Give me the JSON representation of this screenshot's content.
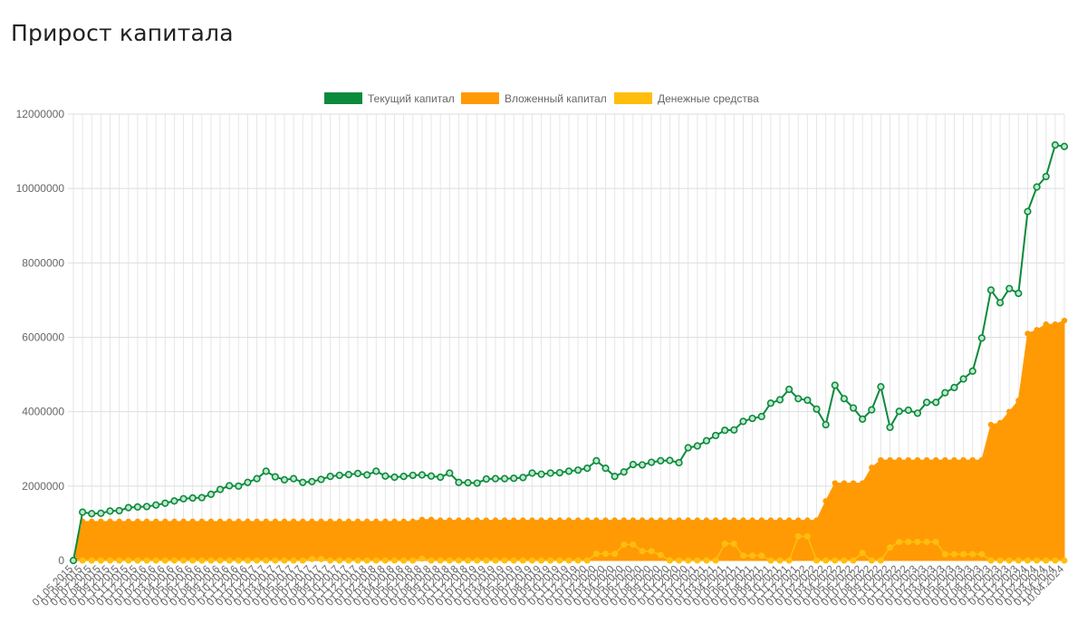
{
  "page": {
    "title": "Прирост капитала"
  },
  "chart_data": {
    "type": "area",
    "title": "",
    "xlabel": "",
    "ylabel": "",
    "ylim": [
      0,
      12000000
    ],
    "yticks": [
      0,
      2000000,
      4000000,
      6000000,
      8000000,
      10000000,
      12000000
    ],
    "grid": true,
    "legend_position": "top",
    "x": [
      "01.05.2015",
      "01.06.2015",
      "01.07.2015",
      "01.08.2015",
      "01.09.2015",
      "01.10.2015",
      "01.11.2015",
      "01.12.2015",
      "01.01.2016",
      "01.02.2016",
      "01.03.2016",
      "01.04.2016",
      "01.05.2016",
      "01.06.2016",
      "01.07.2016",
      "01.08.2016",
      "01.09.2016",
      "01.10.2016",
      "01.11.2016",
      "01.12.2016",
      "01.01.2017",
      "01.02.2017",
      "01.03.2017",
      "01.04.2017",
      "01.05.2017",
      "01.06.2017",
      "01.07.2017",
      "01.08.2017",
      "01.09.2017",
      "01.10.2017",
      "01.11.2017",
      "01.12.2017",
      "01.01.2018",
      "01.02.2018",
      "01.03.2018",
      "01.04.2018",
      "01.05.2018",
      "01.06.2018",
      "01.07.2018",
      "01.08.2018",
      "01.09.2018",
      "01.10.2018",
      "01.11.2018",
      "01.12.2018",
      "01.01.2019",
      "01.02.2019",
      "01.03.2019",
      "01.04.2019",
      "01.05.2019",
      "01.06.2019",
      "01.07.2019",
      "01.08.2019",
      "01.09.2019",
      "01.10.2019",
      "01.11.2019",
      "01.12.2019",
      "01.01.2020",
      "01.02.2020",
      "01.03.2020",
      "01.04.2020",
      "01.05.2020",
      "01.06.2020",
      "01.07.2020",
      "01.08.2020",
      "01.09.2020",
      "01.10.2020",
      "01.11.2020",
      "01.12.2020",
      "01.01.2021",
      "01.02.2021",
      "01.03.2021",
      "01.04.2021",
      "01.05.2021",
      "01.06.2021",
      "01.07.2021",
      "01.08.2021",
      "01.09.2021",
      "01.10.2021",
      "01.11.2021",
      "01.12.2021",
      "01.01.2022",
      "01.02.2022",
      "01.03.2022",
      "01.04.2022",
      "01.05.2022",
      "01.06.2022",
      "01.07.2022",
      "01.08.2022",
      "01.09.2022",
      "01.10.2022",
      "01.11.2022",
      "01.12.2022",
      "01.01.2023",
      "01.02.2023",
      "01.03.2023",
      "01.04.2023",
      "01.05.2023",
      "01.06.2023",
      "01.07.2023",
      "01.08.2023",
      "01.09.2023",
      "01.10.2023",
      "01.11.2023",
      "01.12.2023",
      "01.01.2024",
      "01.02.2024",
      "01.03.2024",
      "01.04.2024",
      "10.04.2024"
    ],
    "series": [
      {
        "name": "Текущий капитал",
        "color": "#0b8a3c",
        "style": "line",
        "values": [
          0,
          1300000,
          1260000,
          1270000,
          1330000,
          1340000,
          1420000,
          1440000,
          1450000,
          1490000,
          1540000,
          1600000,
          1660000,
          1680000,
          1690000,
          1780000,
          1910000,
          2010000,
          2000000,
          2100000,
          2200000,
          2400000,
          2250000,
          2170000,
          2200000,
          2100000,
          2120000,
          2180000,
          2260000,
          2290000,
          2310000,
          2340000,
          2300000,
          2400000,
          2270000,
          2240000,
          2260000,
          2290000,
          2300000,
          2270000,
          2240000,
          2350000,
          2100000,
          2090000,
          2080000,
          2190000,
          2200000,
          2200000,
          2210000,
          2230000,
          2350000,
          2320000,
          2350000,
          2360000,
          2400000,
          2430000,
          2480000,
          2680000,
          2480000,
          2260000,
          2380000,
          2580000,
          2570000,
          2640000,
          2680000,
          2690000,
          2630000,
          3030000,
          3080000,
          3220000,
          3360000,
          3500000,
          3510000,
          3740000,
          3820000,
          3870000,
          4230000,
          4320000,
          4600000,
          4350000,
          4310000,
          4070000,
          3650000,
          4710000,
          4350000,
          4100000,
          3800000,
          4050000,
          4670000,
          3580000,
          4010000,
          4040000,
          3960000,
          4250000,
          4250000,
          4510000,
          4650000,
          4880000,
          5090000,
          5980000,
          7270000,
          6930000,
          7310000,
          7180000,
          9380000,
          10040000,
          10320000,
          11170000,
          11130000
        ]
      },
      {
        "name": "Вложенный капитал",
        "color": "#ff9a04",
        "style": "area",
        "values": [
          0,
          1050000,
          1050000,
          1050000,
          1050000,
          1050000,
          1050000,
          1050000,
          1050000,
          1050000,
          1050000,
          1050000,
          1050000,
          1050000,
          1050000,
          1050000,
          1050000,
          1050000,
          1050000,
          1050000,
          1050000,
          1050000,
          1050000,
          1050000,
          1050000,
          1050000,
          1050000,
          1050000,
          1050000,
          1050000,
          1050000,
          1050000,
          1050000,
          1050000,
          1050000,
          1050000,
          1050000,
          1050000,
          1100000,
          1100000,
          1080000,
          1080000,
          1080000,
          1080000,
          1080000,
          1080000,
          1080000,
          1080000,
          1080000,
          1080000,
          1080000,
          1080000,
          1080000,
          1080000,
          1080000,
          1080000,
          1080000,
          1080000,
          1080000,
          1080000,
          1080000,
          1080000,
          1080000,
          1080000,
          1080000,
          1080000,
          1080000,
          1080000,
          1080000,
          1080000,
          1080000,
          1080000,
          1080000,
          1080000,
          1080000,
          1080000,
          1080000,
          1080000,
          1080000,
          1080000,
          1080000,
          1080000,
          1600000,
          2080000,
          2080000,
          2080000,
          2080000,
          2500000,
          2700000,
          2700000,
          2700000,
          2700000,
          2700000,
          2700000,
          2700000,
          2700000,
          2700000,
          2700000,
          2700000,
          2700000,
          3650000,
          3700000,
          4000000,
          4300000,
          6100000,
          6200000,
          6350000,
          6350000,
          6450000
        ]
      },
      {
        "name": "Денежные средства",
        "color": "#ffbe0e",
        "style": "points",
        "values": [
          0,
          0,
          0,
          0,
          0,
          0,
          0,
          0,
          0,
          0,
          0,
          0,
          0,
          0,
          0,
          0,
          0,
          0,
          0,
          0,
          0,
          0,
          0,
          0,
          0,
          0,
          40000,
          40000,
          0,
          0,
          0,
          0,
          0,
          0,
          0,
          0,
          0,
          0,
          50000,
          0,
          0,
          0,
          0,
          0,
          0,
          0,
          0,
          0,
          0,
          0,
          0,
          0,
          0,
          0,
          0,
          0,
          0,
          180000,
          180000,
          180000,
          430000,
          430000,
          250000,
          250000,
          150000,
          0,
          0,
          0,
          0,
          0,
          0,
          450000,
          450000,
          130000,
          130000,
          130000,
          0,
          0,
          0,
          650000,
          650000,
          0,
          0,
          0,
          0,
          0,
          200000,
          0,
          0,
          350000,
          500000,
          500000,
          500000,
          500000,
          500000,
          170000,
          170000,
          170000,
          170000,
          170000,
          0,
          0,
          0,
          0,
          0,
          0,
          0,
          0,
          0
        ]
      }
    ]
  }
}
